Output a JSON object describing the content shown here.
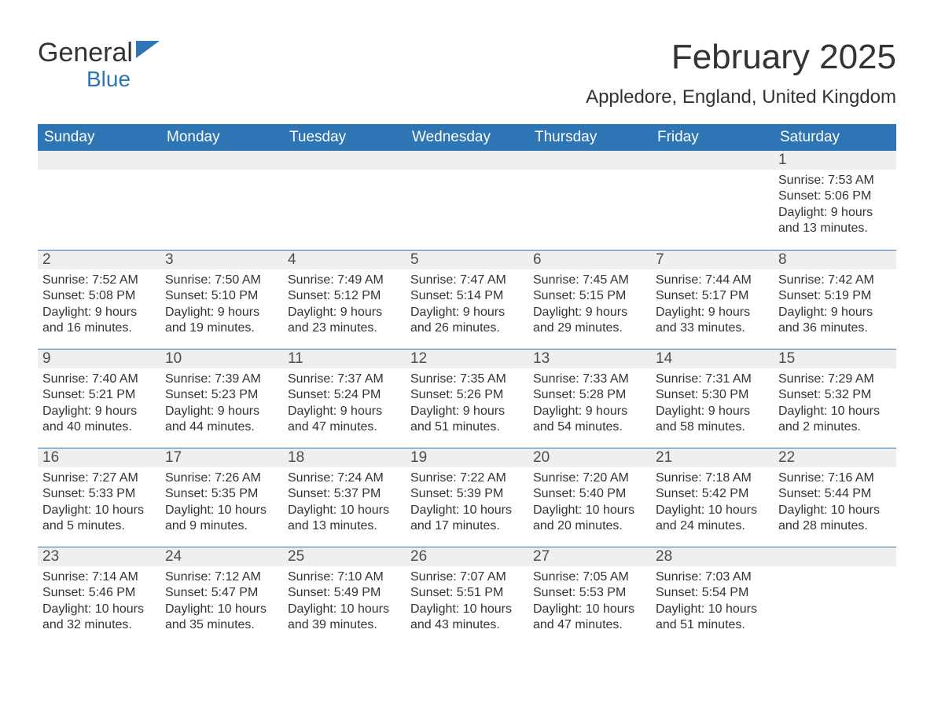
{
  "logo": {
    "text1": "General",
    "text2": "Blue"
  },
  "title": "February 2025",
  "location": "Appledore, England, United Kingdom",
  "colors": {
    "header_bg": "#2e75b6",
    "header_text": "#ffffff",
    "daynum_bg": "#efefef",
    "row_border": "#2e75b6",
    "body_text": "#333333",
    "logo_blue": "#2e75b6"
  },
  "weekdays": [
    "Sunday",
    "Monday",
    "Tuesday",
    "Wednesday",
    "Thursday",
    "Friday",
    "Saturday"
  ],
  "weeks": [
    [
      null,
      null,
      null,
      null,
      null,
      null,
      {
        "n": 1,
        "sunrise": "7:53 AM",
        "sunset": "5:06 PM",
        "daylight": "9 hours and 13 minutes."
      }
    ],
    [
      {
        "n": 2,
        "sunrise": "7:52 AM",
        "sunset": "5:08 PM",
        "daylight": "9 hours and 16 minutes."
      },
      {
        "n": 3,
        "sunrise": "7:50 AM",
        "sunset": "5:10 PM",
        "daylight": "9 hours and 19 minutes."
      },
      {
        "n": 4,
        "sunrise": "7:49 AM",
        "sunset": "5:12 PM",
        "daylight": "9 hours and 23 minutes."
      },
      {
        "n": 5,
        "sunrise": "7:47 AM",
        "sunset": "5:14 PM",
        "daylight": "9 hours and 26 minutes."
      },
      {
        "n": 6,
        "sunrise": "7:45 AM",
        "sunset": "5:15 PM",
        "daylight": "9 hours and 29 minutes."
      },
      {
        "n": 7,
        "sunrise": "7:44 AM",
        "sunset": "5:17 PM",
        "daylight": "9 hours and 33 minutes."
      },
      {
        "n": 8,
        "sunrise": "7:42 AM",
        "sunset": "5:19 PM",
        "daylight": "9 hours and 36 minutes."
      }
    ],
    [
      {
        "n": 9,
        "sunrise": "7:40 AM",
        "sunset": "5:21 PM",
        "daylight": "9 hours and 40 minutes."
      },
      {
        "n": 10,
        "sunrise": "7:39 AM",
        "sunset": "5:23 PM",
        "daylight": "9 hours and 44 minutes."
      },
      {
        "n": 11,
        "sunrise": "7:37 AM",
        "sunset": "5:24 PM",
        "daylight": "9 hours and 47 minutes."
      },
      {
        "n": 12,
        "sunrise": "7:35 AM",
        "sunset": "5:26 PM",
        "daylight": "9 hours and 51 minutes."
      },
      {
        "n": 13,
        "sunrise": "7:33 AM",
        "sunset": "5:28 PM",
        "daylight": "9 hours and 54 minutes."
      },
      {
        "n": 14,
        "sunrise": "7:31 AM",
        "sunset": "5:30 PM",
        "daylight": "9 hours and 58 minutes."
      },
      {
        "n": 15,
        "sunrise": "7:29 AM",
        "sunset": "5:32 PM",
        "daylight": "10 hours and 2 minutes."
      }
    ],
    [
      {
        "n": 16,
        "sunrise": "7:27 AM",
        "sunset": "5:33 PM",
        "daylight": "10 hours and 5 minutes."
      },
      {
        "n": 17,
        "sunrise": "7:26 AM",
        "sunset": "5:35 PM",
        "daylight": "10 hours and 9 minutes."
      },
      {
        "n": 18,
        "sunrise": "7:24 AM",
        "sunset": "5:37 PM",
        "daylight": "10 hours and 13 minutes."
      },
      {
        "n": 19,
        "sunrise": "7:22 AM",
        "sunset": "5:39 PM",
        "daylight": "10 hours and 17 minutes."
      },
      {
        "n": 20,
        "sunrise": "7:20 AM",
        "sunset": "5:40 PM",
        "daylight": "10 hours and 20 minutes."
      },
      {
        "n": 21,
        "sunrise": "7:18 AM",
        "sunset": "5:42 PM",
        "daylight": "10 hours and 24 minutes."
      },
      {
        "n": 22,
        "sunrise": "7:16 AM",
        "sunset": "5:44 PM",
        "daylight": "10 hours and 28 minutes."
      }
    ],
    [
      {
        "n": 23,
        "sunrise": "7:14 AM",
        "sunset": "5:46 PM",
        "daylight": "10 hours and 32 minutes."
      },
      {
        "n": 24,
        "sunrise": "7:12 AM",
        "sunset": "5:47 PM",
        "daylight": "10 hours and 35 minutes."
      },
      {
        "n": 25,
        "sunrise": "7:10 AM",
        "sunset": "5:49 PM",
        "daylight": "10 hours and 39 minutes."
      },
      {
        "n": 26,
        "sunrise": "7:07 AM",
        "sunset": "5:51 PM",
        "daylight": "10 hours and 43 minutes."
      },
      {
        "n": 27,
        "sunrise": "7:05 AM",
        "sunset": "5:53 PM",
        "daylight": "10 hours and 47 minutes."
      },
      {
        "n": 28,
        "sunrise": "7:03 AM",
        "sunset": "5:54 PM",
        "daylight": "10 hours and 51 minutes."
      },
      null
    ]
  ],
  "labels": {
    "sunrise": "Sunrise:",
    "sunset": "Sunset:",
    "daylight": "Daylight:"
  }
}
